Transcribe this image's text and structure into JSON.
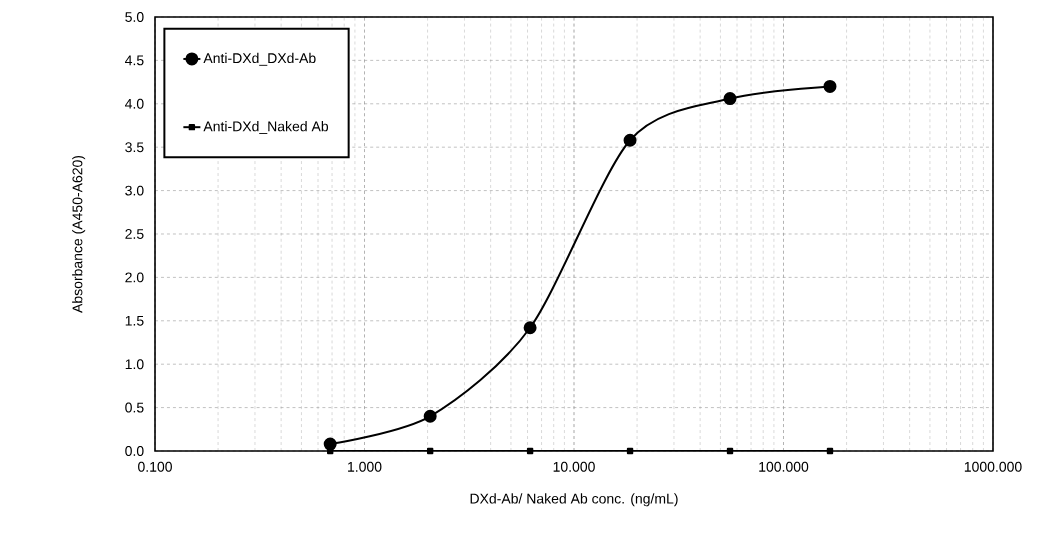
{
  "chart_data": {
    "type": "line",
    "xlabel": "DXd-Ab/ Naked Ab conc. (ng/mL)",
    "ylabel": "Absorbance (A450-A620)",
    "x": [
      0.686,
      2.058,
      6.173,
      18.52,
      55.56,
      166.7
    ],
    "series": [
      {
        "name": "Anti-DXd_DXd-Ab",
        "color": "#000000",
        "marker": "circle",
        "values": [
          0.08,
          0.4,
          1.42,
          3.58,
          4.06,
          4.2
        ]
      },
      {
        "name": "Anti-DXd_Naked Ab",
        "color": "#000000",
        "marker": "square",
        "values": [
          0,
          0,
          0,
          0,
          0,
          0
        ]
      }
    ],
    "log": "x",
    "xlim": [
      0.1,
      1000
    ],
    "ylim": [
      0,
      5
    ],
    "xticks": [
      {
        "value": 0.1,
        "label": "0.100"
      },
      {
        "value": 1,
        "label": "1.000"
      },
      {
        "value": 10,
        "label": "10.000"
      },
      {
        "value": 100,
        "label": "100.000"
      },
      {
        "value": 1000,
        "label": "1000.000"
      }
    ],
    "yticks": [
      {
        "value": 0,
        "label": "0.0"
      },
      {
        "value": 0.5,
        "label": "0.5"
      },
      {
        "value": 1,
        "label": "1.0"
      },
      {
        "value": 1.5,
        "label": "1.5"
      },
      {
        "value": 2,
        "label": "2.0"
      },
      {
        "value": 2.5,
        "label": "2.5"
      },
      {
        "value": 3,
        "label": "3.0"
      },
      {
        "value": 3.5,
        "label": "3.5"
      },
      {
        "value": 4,
        "label": "4.0"
      },
      {
        "value": 4.5,
        "label": "4.5"
      },
      {
        "value": 5,
        "label": "5.0"
      }
    ],
    "grid": true,
    "legend": "top left"
  }
}
